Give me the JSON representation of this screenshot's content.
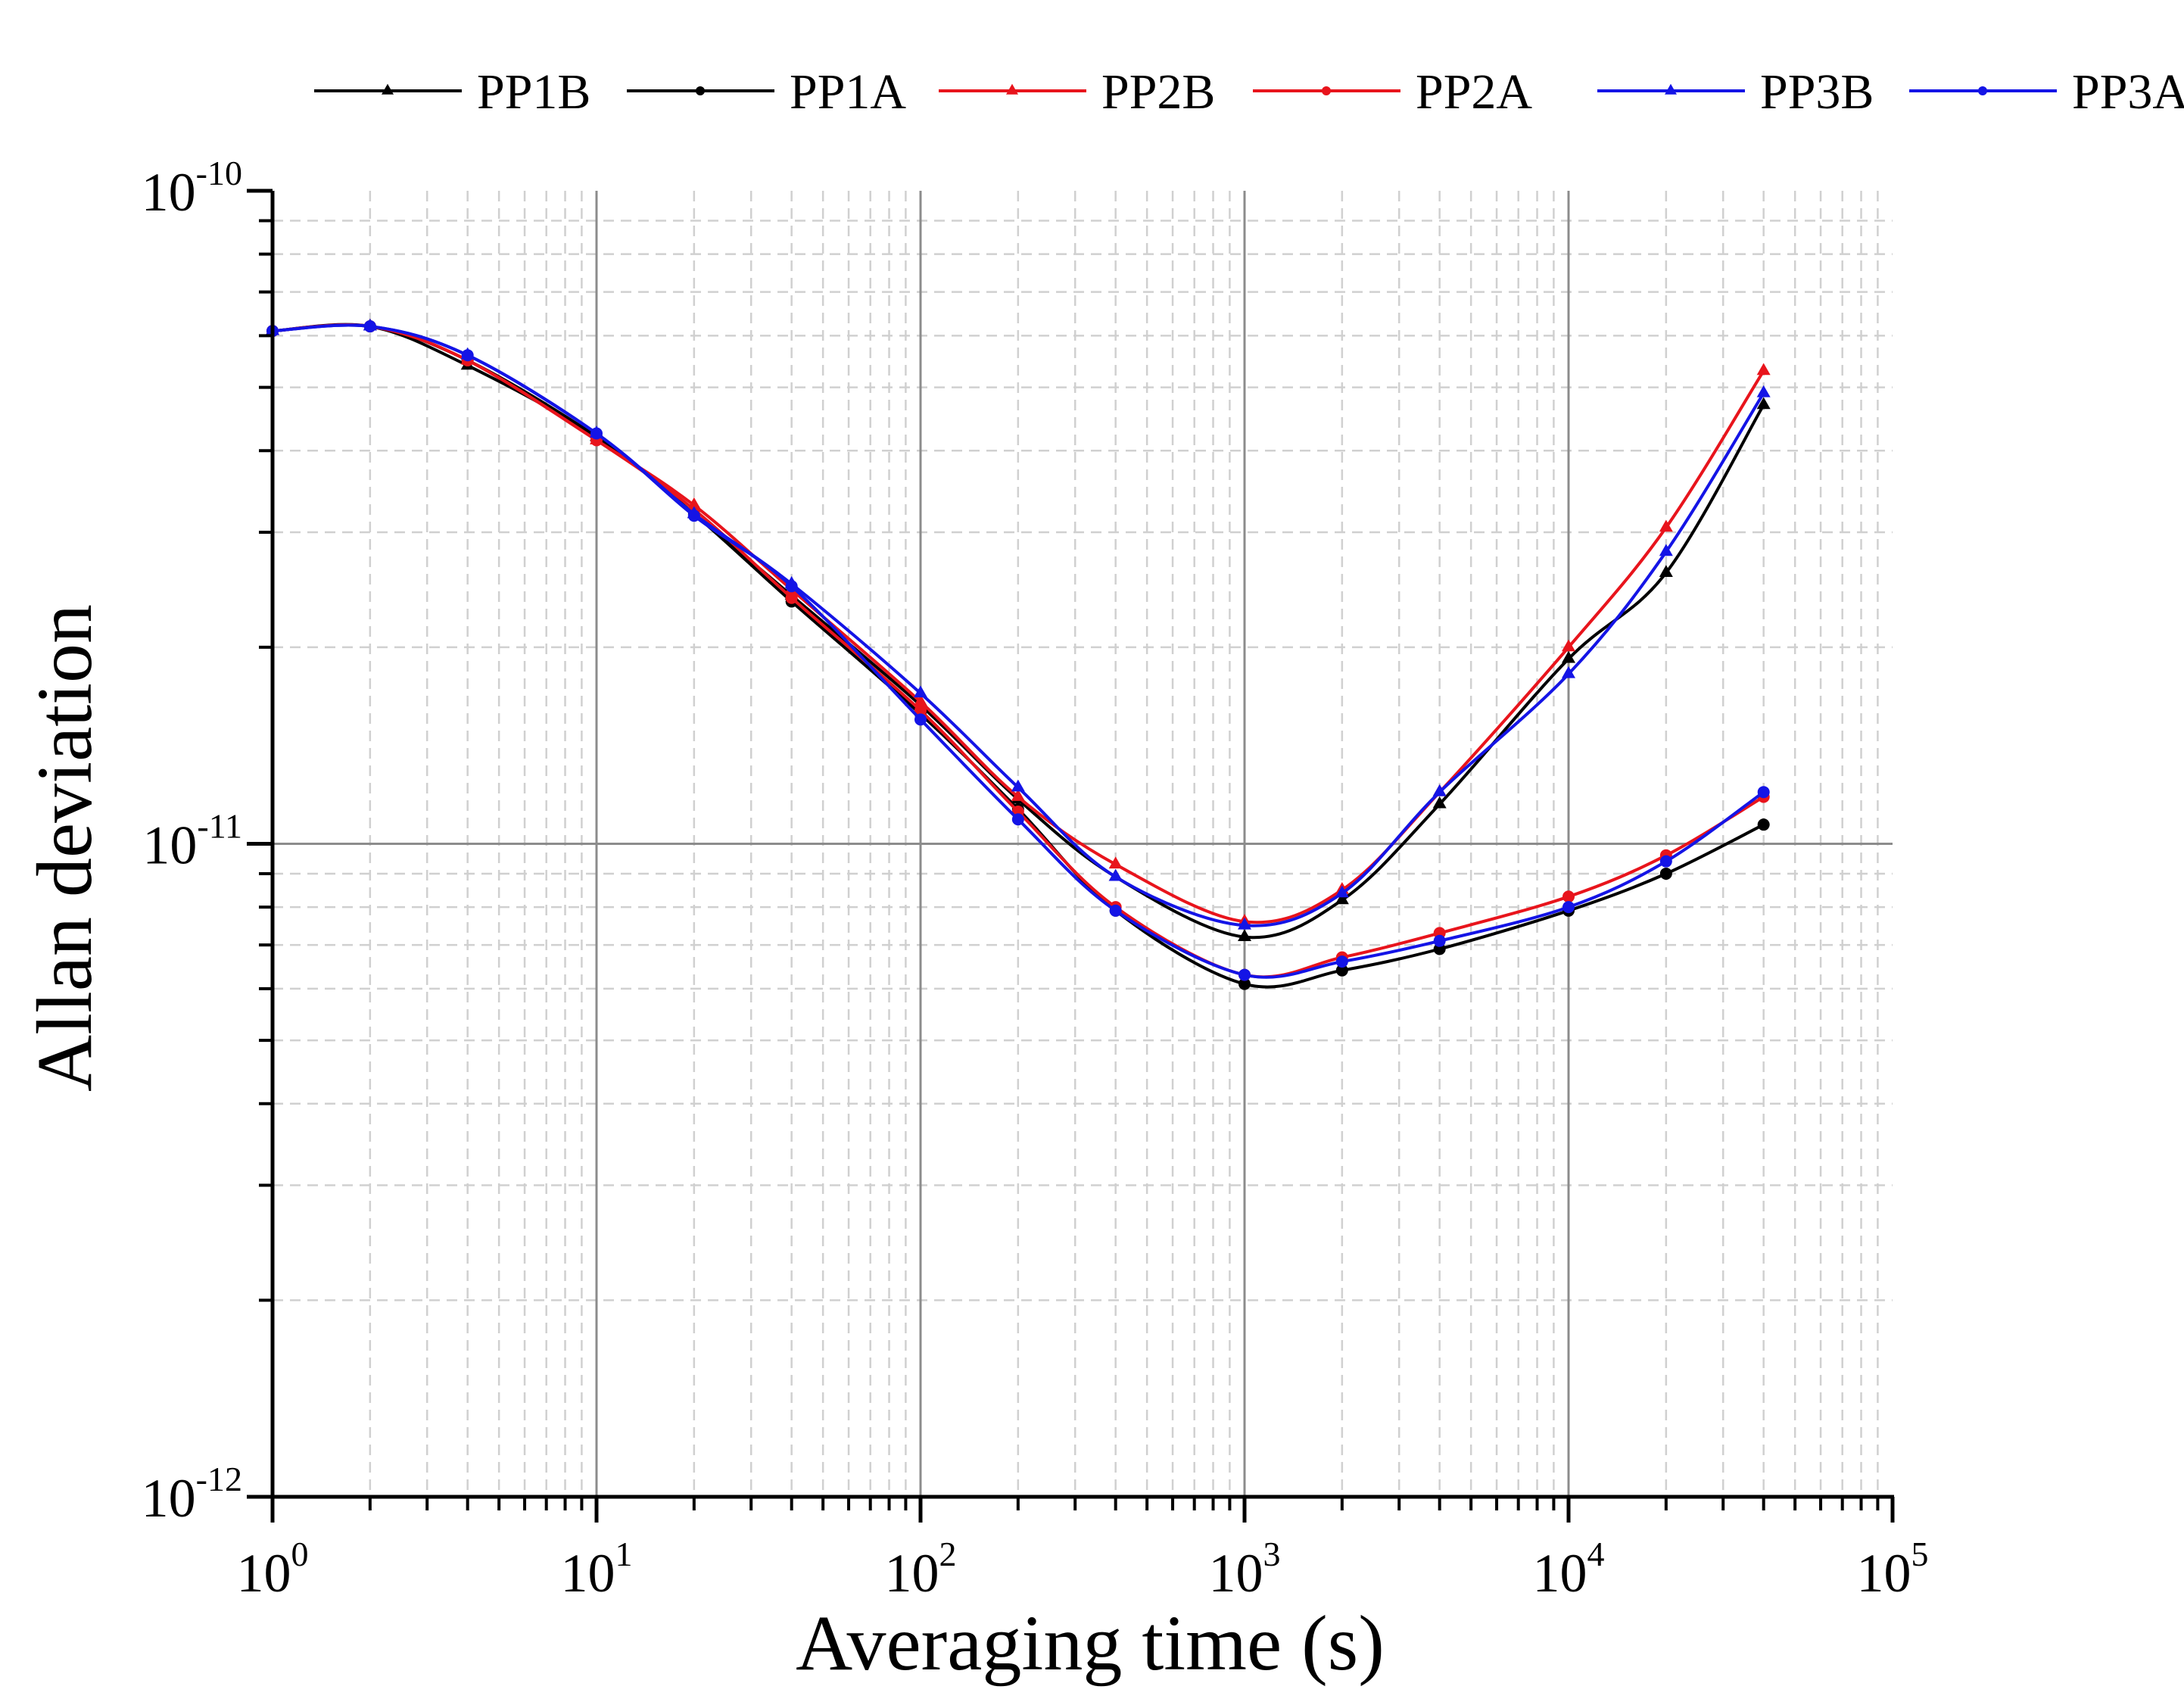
{
  "chart_data": {
    "type": "line",
    "xscale": "log",
    "yscale": "log",
    "xlim": [
      1,
      100000
    ],
    "ylim": [
      1e-12,
      1e-10
    ],
    "xlabel": "Averaging time (s)",
    "ylabel": "Allan deviation",
    "grid": true,
    "legend_position": "top",
    "x_ticks": [
      {
        "base": "10",
        "exp": "0"
      },
      {
        "base": "10",
        "exp": "1"
      },
      {
        "base": "10",
        "exp": "2"
      },
      {
        "base": "10",
        "exp": "3"
      },
      {
        "base": "10",
        "exp": "4"
      },
      {
        "base": "10",
        "exp": "5"
      }
    ],
    "y_ticks": [
      {
        "base": "10",
        "exp": "-10"
      },
      {
        "base": "10",
        "exp": "-11"
      },
      {
        "base": "10",
        "exp": "-12"
      }
    ],
    "x": [
      1,
      2,
      4,
      10,
      20,
      40,
      100,
      200,
      400,
      1000,
      2000,
      4000,
      10000,
      20000,
      40000
    ],
    "series": [
      {
        "name": "PP1B",
        "color": "#000000",
        "marker": "triangle",
        "values": [
          6.1e-11,
          6.2e-11,
          5.4e-11,
          4.2e-11,
          3.2e-11,
          2.4e-11,
          1.63e-11,
          1.17e-11,
          8.9e-12,
          7.2e-12,
          8.2e-12,
          1.15e-11,
          1.92e-11,
          2.6e-11,
          4.7e-11
        ]
      },
      {
        "name": "PP1A",
        "color": "#000000",
        "marker": "circle",
        "values": [
          6.1e-11,
          6.2e-11,
          5.5e-11,
          4.2e-11,
          3.2e-11,
          2.35e-11,
          1.58e-11,
          1.13e-11,
          7.9e-12,
          6.1e-12,
          6.4e-12,
          6.9e-12,
          7.9e-12,
          9e-12,
          1.07e-11
        ]
      },
      {
        "name": "PP2B",
        "color": "#e8141c",
        "marker": "triangle",
        "values": [
          6.1e-11,
          6.2e-11,
          5.5e-11,
          4.15e-11,
          3.3e-11,
          2.45e-11,
          1.65e-11,
          1.18e-11,
          9.3e-12,
          7.6e-12,
          8.5e-12,
          1.2e-11,
          2e-11,
          3.05e-11,
          5.3e-11
        ]
      },
      {
        "name": "PP2A",
        "color": "#e8141c",
        "marker": "circle",
        "values": [
          6.1e-11,
          6.2e-11,
          5.5e-11,
          4.15e-11,
          3.25e-11,
          2.38e-11,
          1.6e-11,
          1.12e-11,
          8e-12,
          6.3e-12,
          6.7e-12,
          7.3e-12,
          8.3e-12,
          9.6e-12,
          1.18e-11
        ]
      },
      {
        "name": "PP3B",
        "color": "#1414e6",
        "marker": "triangle",
        "values": [
          6.1e-11,
          6.2e-11,
          5.6e-11,
          4.25e-11,
          3.2e-11,
          2.5e-11,
          1.7e-11,
          1.22e-11,
          8.9e-12,
          7.5e-12,
          8.4e-12,
          1.2e-11,
          1.82e-11,
          2.8e-11,
          4.9e-11
        ]
      },
      {
        "name": "PP3A",
        "color": "#1414e6",
        "marker": "circle",
        "values": [
          6.1e-11,
          6.2e-11,
          5.6e-11,
          4.25e-11,
          3.18e-11,
          2.48e-11,
          1.55e-11,
          1.09e-11,
          7.9e-12,
          6.3e-12,
          6.6e-12,
          7.1e-12,
          8e-12,
          9.4e-12,
          1.2e-11
        ]
      }
    ]
  }
}
